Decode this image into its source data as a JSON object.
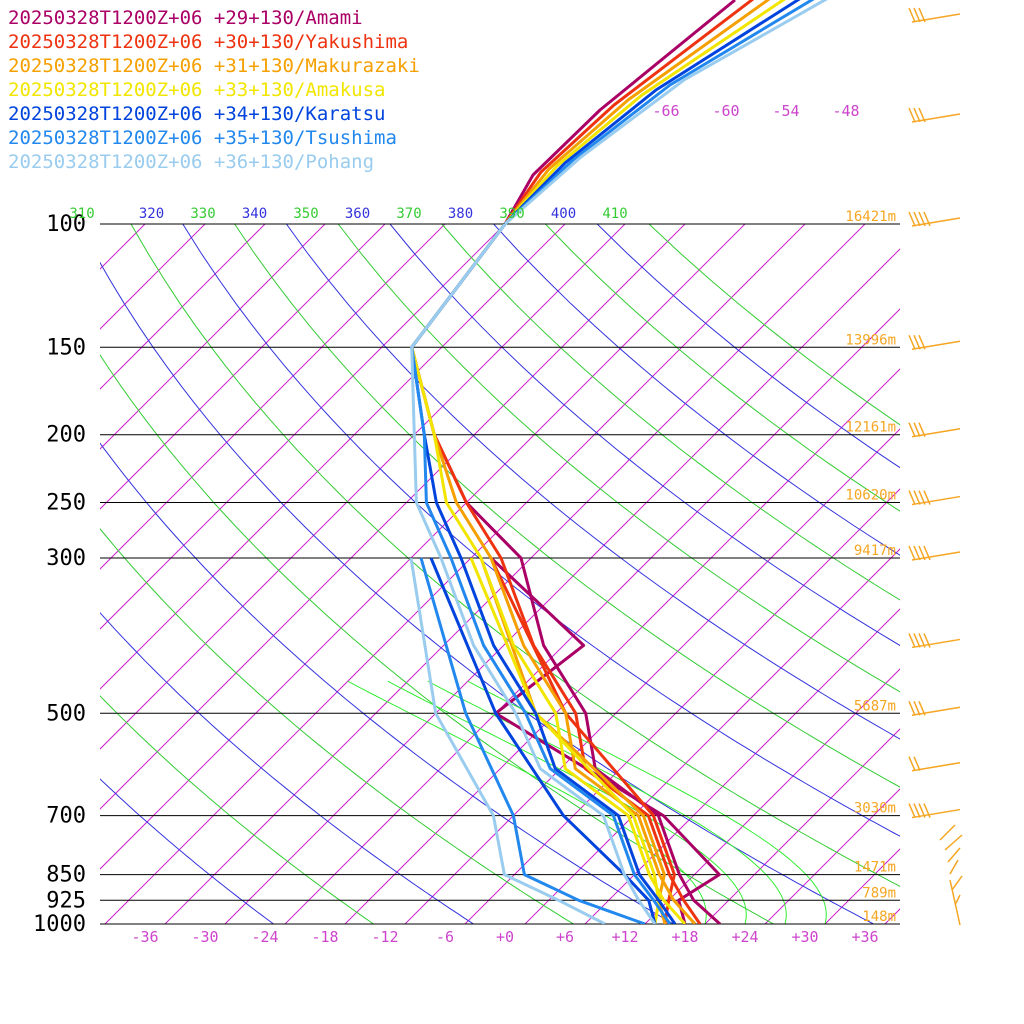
{
  "chart_data": {
    "type": "line",
    "title": "",
    "xlabel": "",
    "ylabel": "",
    "x_unit": "°C (skewed)",
    "y_scale": "log pressure (hPa)",
    "pressure_levels": [
      100,
      150,
      200,
      250,
      300,
      500,
      700,
      850,
      925,
      1000
    ],
    "pressure_tick_labels": [
      "100",
      "150",
      "200",
      "250",
      "300",
      "500",
      "700",
      "850",
      "925",
      "1000"
    ],
    "x_tick_labels": [
      "-36",
      "-30",
      "-24",
      "-18",
      "-12",
      "-6",
      "+0",
      "+6",
      "+12",
      "+18",
      "+24",
      "+30",
      "+36"
    ],
    "x_ticks": [
      -36,
      -30,
      -24,
      -18,
      -12,
      -6,
      0,
      6,
      12,
      18,
      24,
      30,
      36
    ],
    "height_labels": [
      {
        "p": 100,
        "text": "16421m"
      },
      {
        "p": 150,
        "text": "13996m"
      },
      {
        "p": 200,
        "text": "12161m"
      },
      {
        "p": 250,
        "text": "10620m"
      },
      {
        "p": 300,
        "text": "9417m"
      },
      {
        "p": 500,
        "text": "5687m"
      },
      {
        "p": 700,
        "text": "3030m"
      },
      {
        "p": 850,
        "text": "1471m"
      },
      {
        "p": 925,
        "text": "789m"
      },
      {
        "p": 1000,
        "text": "148m"
      }
    ],
    "theta_labels": [
      "310",
      "320",
      "330",
      "340",
      "350",
      "360",
      "370",
      "380",
      "390",
      "400",
      "410"
    ],
    "upper_isotherm_labels": [
      "-66",
      "-60",
      "-54",
      "-48"
    ],
    "colors": {
      "grid_line": "#000000",
      "isotherm": "#cc22cc",
      "isotherm_label": "#cc44cc",
      "dry_adiabat_a": "#3333dd",
      "dry_adiabat_b": "#33cc33",
      "moist_adiabat": "#33ee33",
      "height_label": "#f5a623",
      "wind_barb": "#f5a623"
    },
    "legend_placement": "top-left",
    "series": [
      {
        "name": "20250328T1200Z+06 +29+130/Amami",
        "color": "#aa0066",
        "temperature": [
          [
            1000,
            21.5
          ],
          [
            925,
            16.5
          ],
          [
            850,
            12.5
          ],
          [
            700,
            4.5
          ],
          [
            600,
            -6.5
          ],
          [
            500,
            -13
          ],
          [
            400,
            -24
          ],
          [
            300,
            -35
          ],
          [
            250,
            -46
          ],
          [
            200,
            -56
          ],
          [
            150,
            -67
          ],
          [
            100,
            -70
          ]
        ],
        "dewpoint": [
          [
            1000,
            18
          ],
          [
            925,
            15
          ],
          [
            850,
            16.5
          ],
          [
            700,
            5
          ],
          [
            500,
            -22
          ],
          [
            400,
            -20
          ],
          [
            300,
            -38
          ]
        ]
      },
      {
        "name": "20250328T1200Z+06 +30+130/Yakushima",
        "color": "#ee3311",
        "temperature": [
          [
            1000,
            19.5
          ],
          [
            925,
            15.5
          ],
          [
            850,
            11.5
          ],
          [
            700,
            3.5
          ],
          [
            600,
            -7.5
          ],
          [
            500,
            -14
          ],
          [
            400,
            -25
          ],
          [
            300,
            -37
          ],
          [
            250,
            -46
          ],
          [
            200,
            -56
          ],
          [
            150,
            -67
          ],
          [
            100,
            -70
          ]
        ],
        "dewpoint": [
          [
            1000,
            16
          ],
          [
            925,
            14
          ],
          [
            850,
            12
          ],
          [
            700,
            4
          ],
          [
            500,
            -15
          ],
          [
            300,
            -38
          ]
        ]
      },
      {
        "name": "20250328T1200Z+06 +31+130/Makurazaki",
        "color": "#f5a000",
        "temperature": [
          [
            1000,
            19
          ],
          [
            925,
            14.5
          ],
          [
            850,
            10.5
          ],
          [
            700,
            2.5
          ],
          [
            600,
            -8.5
          ],
          [
            500,
            -15
          ],
          [
            400,
            -26
          ],
          [
            300,
            -38
          ],
          [
            250,
            -47
          ],
          [
            200,
            -56
          ],
          [
            150,
            -67
          ],
          [
            100,
            -70
          ]
        ],
        "dewpoint": [
          [
            1000,
            16
          ],
          [
            925,
            13
          ],
          [
            850,
            11
          ],
          [
            700,
            3
          ],
          [
            500,
            -18
          ],
          [
            300,
            -39
          ]
        ]
      },
      {
        "name": "20250328T1200Z+06 +33+130/Amakusa",
        "color": "#f2e600",
        "temperature": [
          [
            1000,
            18
          ],
          [
            925,
            13.5
          ],
          [
            850,
            9.5
          ],
          [
            700,
            1.5
          ],
          [
            600,
            -9.5
          ],
          [
            500,
            -16
          ],
          [
            400,
            -27
          ],
          [
            300,
            -39
          ],
          [
            250,
            -48
          ],
          [
            200,
            -56
          ],
          [
            150,
            -67
          ],
          [
            100,
            -70
          ]
        ],
        "dewpoint": [
          [
            1000,
            15
          ],
          [
            925,
            13
          ],
          [
            850,
            10
          ],
          [
            700,
            2
          ],
          [
            500,
            -18
          ],
          [
            300,
            -40
          ]
        ]
      },
      {
        "name": "20250328T1200Z+06 +34+130/Karatsu",
        "color": "#0044dd",
        "temperature": [
          [
            1000,
            17
          ],
          [
            925,
            13
          ],
          [
            850,
            8.5
          ],
          [
            700,
            0.5
          ],
          [
            600,
            -10.5
          ],
          [
            500,
            -18
          ],
          [
            400,
            -29
          ],
          [
            300,
            -41
          ],
          [
            250,
            -49
          ],
          [
            200,
            -57
          ],
          [
            150,
            -67
          ],
          [
            100,
            -70
          ]
        ],
        "dewpoint": [
          [
            1000,
            15
          ],
          [
            925,
            12
          ],
          [
            850,
            7
          ],
          [
            700,
            -5
          ],
          [
            500,
            -22
          ],
          [
            300,
            -44
          ]
        ]
      },
      {
        "name": "20250328T1200Z+06 +35+130/Tsushima",
        "color": "#2288ee",
        "temperature": [
          [
            1000,
            16.5
          ],
          [
            925,
            12.5
          ],
          [
            850,
            8
          ],
          [
            700,
            0
          ],
          [
            600,
            -11
          ],
          [
            500,
            -19
          ],
          [
            400,
            -30
          ],
          [
            300,
            -42
          ],
          [
            250,
            -50
          ],
          [
            200,
            -57
          ],
          [
            150,
            -67
          ],
          [
            100,
            -70
          ]
        ],
        "dewpoint": [
          [
            1000,
            14
          ],
          [
            925,
            5
          ],
          [
            850,
            -3
          ],
          [
            700,
            -10
          ],
          [
            500,
            -25
          ],
          [
            300,
            -45
          ]
        ]
      },
      {
        "name": "20250328T1200Z+06 +36+130/Pohang",
        "color": "#99ccee",
        "temperature": [
          [
            1000,
            15
          ],
          [
            925,
            11
          ],
          [
            850,
            7
          ],
          [
            700,
            -1
          ],
          [
            600,
            -12
          ],
          [
            500,
            -20
          ],
          [
            400,
            -31
          ],
          [
            300,
            -43
          ],
          [
            250,
            -51
          ],
          [
            200,
            -58
          ],
          [
            150,
            -67
          ],
          [
            100,
            -70
          ]
        ],
        "dewpoint": [
          [
            1000,
            10
          ],
          [
            925,
            3
          ],
          [
            850,
            -5
          ],
          [
            700,
            -12
          ],
          [
            500,
            -28
          ],
          [
            300,
            -46
          ]
        ]
      }
    ],
    "wind_barbs": [
      {
        "p": 100,
        "speed_kt": 40
      },
      {
        "p": 150,
        "speed_kt": 25
      },
      {
        "p": 200,
        "speed_kt": 30
      },
      {
        "p": 250,
        "speed_kt": 35
      },
      {
        "p": 300,
        "speed_kt": 40
      },
      {
        "p": 400,
        "speed_kt": 35
      },
      {
        "p": 500,
        "speed_kt": 25
      },
      {
        "p": 600,
        "speed_kt": 20
      },
      {
        "p": 700,
        "speed_kt": 40
      }
    ]
  }
}
